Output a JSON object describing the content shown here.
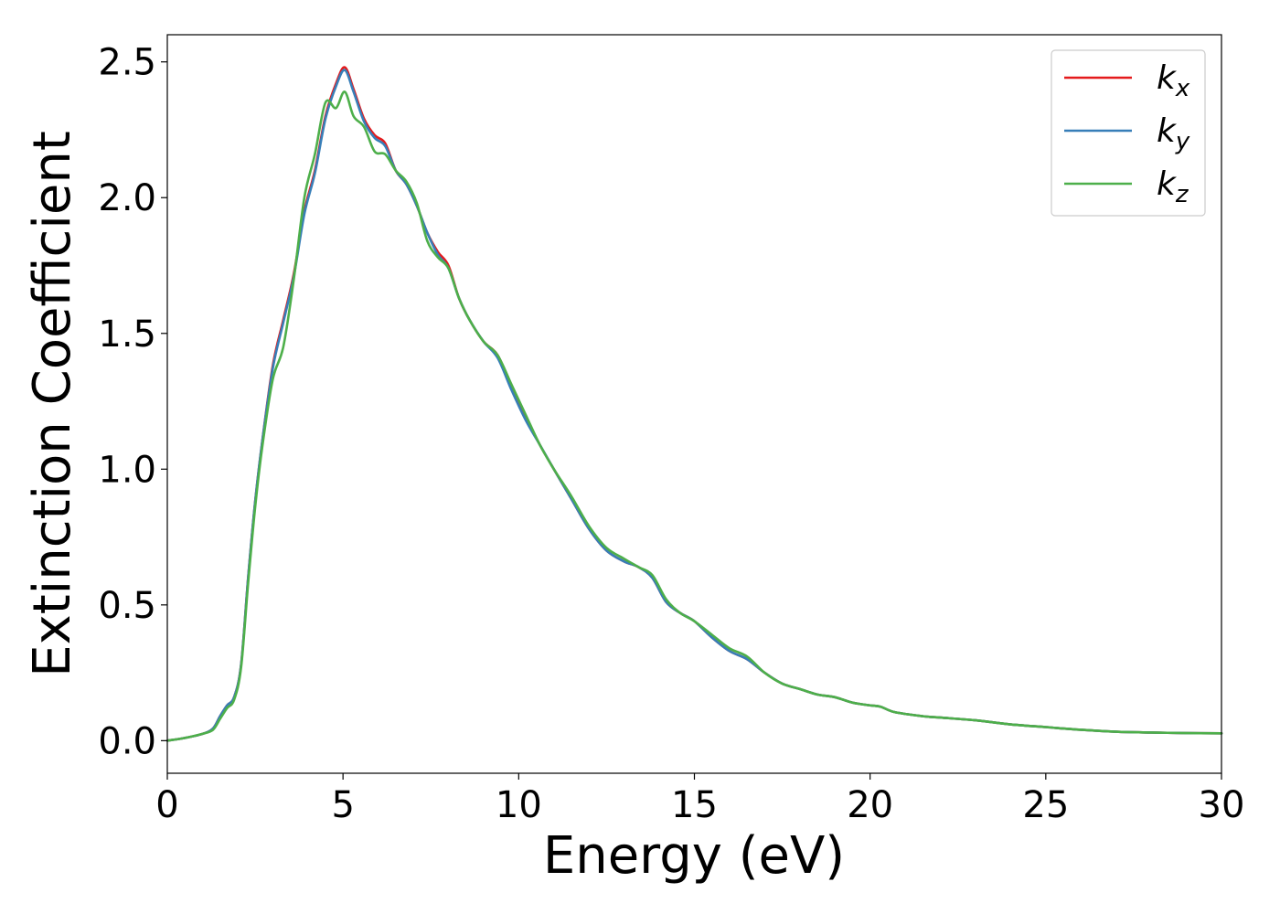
{
  "chart_data": {
    "type": "line",
    "title": "",
    "xlabel": "Energy (eV)",
    "ylabel": "Extinction Coefficient",
    "xlim": [
      0,
      30
    ],
    "ylim": [
      -0.12,
      2.6
    ],
    "xticks": [
      0,
      5,
      10,
      15,
      20,
      25,
      30
    ],
    "xtick_labels": [
      "0",
      "5",
      "10",
      "15",
      "20",
      "25",
      "30"
    ],
    "yticks": [
      0.0,
      0.5,
      1.0,
      1.5,
      2.0,
      2.5
    ],
    "ytick_labels": [
      "0.0",
      "0.5",
      "1.0",
      "1.5",
      "2.0",
      "2.5"
    ],
    "grid": false,
    "legend_position": "top-right",
    "series": [
      {
        "name": "kx",
        "label_main": "k",
        "label_sub": "x",
        "color": "#e41a1c",
        "x": [
          0,
          0.5,
          1.0,
          1.3,
          1.5,
          1.7,
          1.9,
          2.1,
          2.3,
          2.5,
          2.7,
          3.0,
          3.3,
          3.6,
          3.9,
          4.2,
          4.5,
          4.8,
          5.05,
          5.3,
          5.6,
          5.9,
          6.2,
          6.5,
          6.8,
          7.1,
          7.4,
          7.7,
          8.0,
          8.3,
          8.6,
          9.0,
          9.4,
          9.8,
          10.2,
          10.6,
          11.0,
          11.5,
          12.0,
          12.5,
          13.0,
          13.4,
          13.8,
          14.2,
          14.6,
          15.0,
          15.5,
          16.0,
          16.5,
          17.0,
          17.5,
          18.0,
          18.5,
          19.0,
          19.5,
          20.0,
          20.3,
          20.7,
          21.5,
          22.0,
          23.0,
          24.0,
          25.0,
          26.0,
          27.0,
          28.0,
          29.0,
          30.0
        ],
        "values": [
          0.0,
          0.01,
          0.025,
          0.045,
          0.09,
          0.13,
          0.16,
          0.28,
          0.6,
          0.88,
          1.1,
          1.38,
          1.55,
          1.72,
          1.95,
          2.1,
          2.3,
          2.42,
          2.48,
          2.4,
          2.29,
          2.23,
          2.2,
          2.1,
          2.05,
          1.97,
          1.87,
          1.8,
          1.75,
          1.63,
          1.55,
          1.47,
          1.42,
          1.3,
          1.19,
          1.09,
          1.0,
          0.89,
          0.78,
          0.7,
          0.66,
          0.64,
          0.6,
          0.51,
          0.47,
          0.44,
          0.38,
          0.33,
          0.3,
          0.25,
          0.21,
          0.19,
          0.17,
          0.16,
          0.14,
          0.13,
          0.125,
          0.105,
          0.09,
          0.085,
          0.075,
          0.06,
          0.05,
          0.04,
          0.033,
          0.03,
          0.028,
          0.027
        ]
      },
      {
        "name": "ky",
        "label_main": "k",
        "label_sub": "y",
        "color": "#377eb8",
        "x": [
          0,
          0.5,
          1.0,
          1.3,
          1.5,
          1.7,
          1.9,
          2.1,
          2.3,
          2.5,
          2.7,
          3.0,
          3.3,
          3.6,
          3.9,
          4.2,
          4.5,
          4.8,
          5.05,
          5.3,
          5.6,
          5.9,
          6.2,
          6.5,
          6.8,
          7.1,
          7.4,
          7.7,
          8.0,
          8.3,
          8.6,
          9.0,
          9.4,
          9.8,
          10.2,
          10.6,
          11.0,
          11.5,
          12.0,
          12.5,
          13.0,
          13.4,
          13.8,
          14.2,
          14.6,
          15.0,
          15.5,
          16.0,
          16.5,
          17.0,
          17.5,
          18.0,
          18.5,
          19.0,
          19.5,
          20.0,
          20.3,
          20.7,
          21.5,
          22.0,
          23.0,
          24.0,
          25.0,
          26.0,
          27.0,
          28.0,
          29.0,
          30.0
        ],
        "values": [
          0.0,
          0.01,
          0.025,
          0.045,
          0.09,
          0.13,
          0.16,
          0.28,
          0.6,
          0.88,
          1.1,
          1.37,
          1.54,
          1.71,
          1.94,
          2.09,
          2.29,
          2.41,
          2.47,
          2.39,
          2.28,
          2.22,
          2.19,
          2.1,
          2.05,
          1.97,
          1.87,
          1.79,
          1.74,
          1.63,
          1.55,
          1.47,
          1.41,
          1.29,
          1.18,
          1.09,
          1.0,
          0.89,
          0.78,
          0.7,
          0.66,
          0.64,
          0.6,
          0.51,
          0.47,
          0.44,
          0.38,
          0.33,
          0.3,
          0.25,
          0.21,
          0.19,
          0.17,
          0.16,
          0.14,
          0.13,
          0.125,
          0.105,
          0.09,
          0.085,
          0.075,
          0.06,
          0.05,
          0.04,
          0.033,
          0.03,
          0.028,
          0.027
        ]
      },
      {
        "name": "kz",
        "label_main": "k",
        "label_sub": "z",
        "color": "#4daf4a",
        "x": [
          0,
          0.5,
          1.0,
          1.3,
          1.5,
          1.7,
          1.9,
          2.1,
          2.3,
          2.5,
          2.7,
          3.0,
          3.3,
          3.6,
          3.9,
          4.2,
          4.5,
          4.8,
          5.05,
          5.3,
          5.6,
          5.9,
          6.2,
          6.5,
          6.8,
          7.1,
          7.4,
          7.7,
          8.0,
          8.3,
          8.6,
          9.0,
          9.4,
          9.8,
          10.2,
          10.6,
          11.0,
          11.5,
          12.0,
          12.5,
          13.0,
          13.4,
          13.8,
          14.2,
          14.6,
          15.0,
          15.5,
          16.0,
          16.5,
          17.0,
          17.5,
          18.0,
          18.5,
          19.0,
          19.5,
          20.0,
          20.3,
          20.7,
          21.5,
          22.0,
          23.0,
          24.0,
          25.0,
          26.0,
          27.0,
          28.0,
          29.0,
          30.0
        ],
        "values": [
          0.0,
          0.01,
          0.025,
          0.04,
          0.08,
          0.12,
          0.15,
          0.27,
          0.58,
          0.86,
          1.08,
          1.33,
          1.45,
          1.7,
          2.0,
          2.16,
          2.35,
          2.33,
          2.39,
          2.3,
          2.26,
          2.17,
          2.16,
          2.1,
          2.06,
          1.98,
          1.84,
          1.78,
          1.74,
          1.63,
          1.55,
          1.47,
          1.42,
          1.31,
          1.2,
          1.09,
          1.0,
          0.9,
          0.79,
          0.71,
          0.67,
          0.64,
          0.61,
          0.52,
          0.47,
          0.44,
          0.39,
          0.34,
          0.31,
          0.25,
          0.21,
          0.19,
          0.17,
          0.16,
          0.14,
          0.13,
          0.125,
          0.105,
          0.09,
          0.085,
          0.075,
          0.06,
          0.05,
          0.04,
          0.033,
          0.03,
          0.028,
          0.027
        ]
      }
    ]
  }
}
